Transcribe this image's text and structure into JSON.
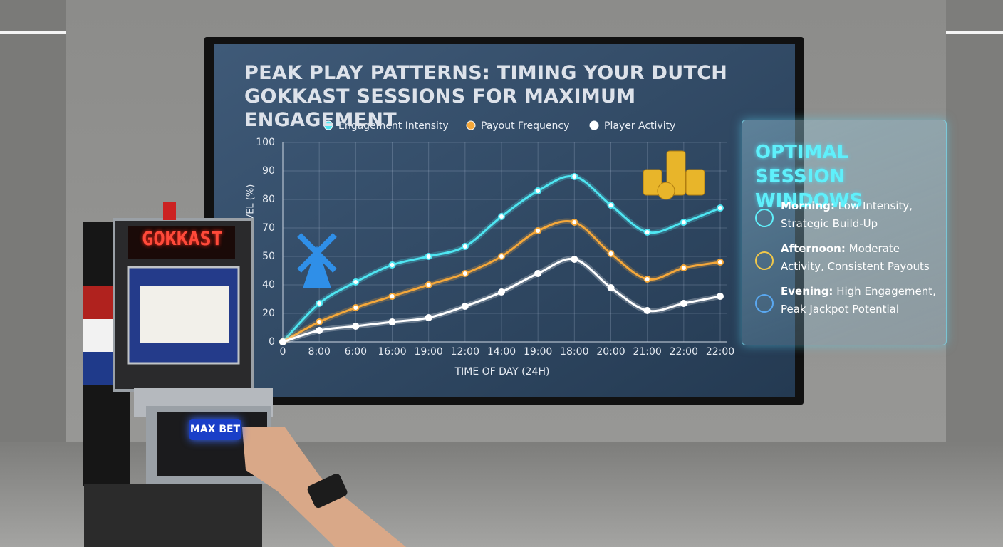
{
  "chart_data": {
    "type": "line",
    "title": "PEAK PLAY PATTERNS: TIMING YOUR DUTCH GOKKAST SESSIONS FOR MAXIMUM ENGAGEMENT",
    "x_label": "TIME OF DAY (24H)",
    "y_label": "ENGAGEMENT LEVEL (%)",
    "categories": [
      "0",
      "8:00",
      "6:00",
      "16:00",
      "19:00",
      "12:00",
      "14:00",
      "19:00",
      "18:00",
      "20:00",
      "21:00",
      "22:00",
      "22:00"
    ],
    "series": [
      {
        "name": "Engagement Intensity",
        "color": "#4fe6f2",
        "values": [
          0,
          27,
          41,
          47,
          50,
          57,
          74,
          83,
          88,
          78,
          67,
          72,
          77
        ]
      },
      {
        "name": "Payout Frequency",
        "color": "#f5a83a",
        "values": [
          0,
          14,
          24,
          32,
          40,
          44,
          50,
          68,
          72,
          52,
          42,
          46,
          48
        ]
      },
      {
        "name": "Player Activity",
        "color": "#ffffff",
        "values": [
          0,
          8,
          11,
          14,
          17,
          25,
          35,
          44,
          49,
          38,
          22,
          27,
          32
        ]
      }
    ],
    "ylim": [
      0,
      100
    ],
    "yticks": [
      0,
      20,
      40,
      50,
      70,
      80,
      90,
      100
    ],
    "grid": true
  },
  "panel": {
    "title": "OPTIMAL SESSION WINDOWS",
    "items": [
      {
        "label": "Morning:",
        "text": "Low Intensity, Strategic Build-Up"
      },
      {
        "label": "Afternoon:",
        "text": "Moderate Activity, Consistent Payouts"
      },
      {
        "label": "Evening:",
        "text": "High Engagement, Peak Jackpot Potential"
      }
    ]
  },
  "machine": {
    "sign": "GOKKAST",
    "button": "MAX BET"
  }
}
